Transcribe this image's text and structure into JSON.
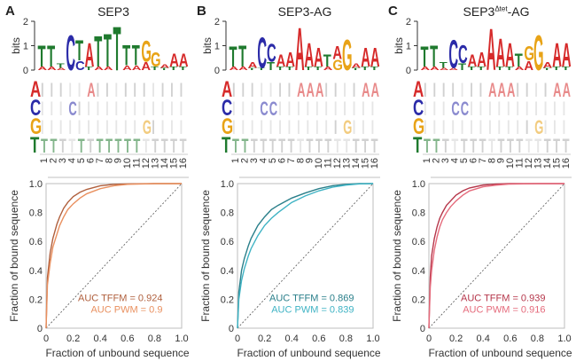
{
  "colors": {
    "A": "#d62a2a",
    "C": "#2b2ba8",
    "G": "#e8a317",
    "T": "#1f7a2e"
  },
  "chart_data": [
    {
      "panel": "A",
      "title": "SEP3",
      "title_sup": "",
      "title_suffix": "",
      "logo": {
        "type": "sequence-logo",
        "ylabel": "bits",
        "yticks": [
          "0",
          "1",
          "2"
        ],
        "ylim": [
          0,
          2
        ],
        "positions": [
          {
            "top": "T",
            "height": 0.9,
            "sub": [
              [
                "A",
                0.15
              ]
            ]
          },
          {
            "top": "T",
            "height": 0.9,
            "sub": [
              [
                "A",
                0.15
              ]
            ]
          },
          {
            "top": "T",
            "height": 0.2,
            "sub": [
              [
                "A",
                0.1
              ]
            ]
          },
          {
            "top": "C",
            "height": 1.5,
            "sub": []
          },
          {
            "top": "T",
            "height": 0.85,
            "sub": [
              [
                "C",
                0.4
              ]
            ]
          },
          {
            "top": "A",
            "height": 1.0,
            "sub": [
              [
                "T",
                0.15
              ]
            ]
          },
          {
            "top": "T",
            "height": 1.3,
            "sub": [
              [
                "A",
                0.15
              ]
            ]
          },
          {
            "top": "T",
            "height": 1.4,
            "sub": [
              [
                "A",
                0.15
              ]
            ]
          },
          {
            "top": "T",
            "height": 1.85,
            "sub": []
          },
          {
            "top": "T",
            "height": 0.85,
            "sub": [
              [
                "A",
                0.2
              ]
            ]
          },
          {
            "top": "T",
            "height": 0.85,
            "sub": [
              [
                "A",
                0.2
              ]
            ]
          },
          {
            "top": "G",
            "height": 0.9,
            "sub": [
              [
                "A",
                0.35
              ]
            ]
          },
          {
            "top": "G",
            "height": 0.6,
            "sub": [
              [
                "T",
                0.15
              ]
            ]
          },
          {
            "top": "A",
            "height": 0.15,
            "sub": [
              [
                "T",
                0.1
              ]
            ]
          },
          {
            "top": "A",
            "height": 0.55,
            "sub": [
              [
                "T",
                0.15
              ]
            ]
          },
          {
            "top": "A",
            "height": 0.55,
            "sub": [
              [
                "T",
                0.15
              ]
            ]
          }
        ]
      },
      "matrix": {
        "row_labels": [
          "A",
          "C",
          "G",
          "T"
        ],
        "col_labels": [
          "1",
          "2",
          "3",
          "4",
          "5",
          "6",
          "7",
          "8",
          "9",
          "10",
          "11",
          "12",
          "13",
          "14",
          "15",
          "16"
        ]
      },
      "roc": {
        "type": "line",
        "xlabel": "Fraction of unbound sequence",
        "ylabel": "Fraction of bound sequence",
        "xticks": [
          "0",
          "0.2",
          "0.4",
          "0.6",
          "0.8",
          "1.0"
        ],
        "yticks": [
          "0",
          "0.2",
          "0.4",
          "0.6",
          "0.8",
          "1.0"
        ],
        "xlim": [
          0,
          1
        ],
        "ylim": [
          0,
          1
        ],
        "diagonal": true,
        "series": [
          {
            "name": "AUC TFFM = 0.924",
            "color": "#b0603e",
            "x": [
              0,
              0.01,
              0.03,
              0.05,
              0.08,
              0.1,
              0.13,
              0.16,
              0.2,
              0.25,
              0.3,
              0.4,
              0.5,
              0.6,
              0.8,
              1.0
            ],
            "y": [
              0,
              0.35,
              0.52,
              0.62,
              0.72,
              0.77,
              0.83,
              0.87,
              0.91,
              0.94,
              0.96,
              0.985,
              0.995,
              0.998,
              1.0,
              1.0
            ]
          },
          {
            "name": "AUC PWM = 0.9",
            "color": "#e9905f",
            "x": [
              0,
              0.01,
              0.03,
              0.05,
              0.08,
              0.1,
              0.13,
              0.16,
              0.2,
              0.25,
              0.3,
              0.4,
              0.5,
              0.6,
              0.8,
              1.0
            ],
            "y": [
              0,
              0.3,
              0.45,
              0.56,
              0.65,
              0.71,
              0.77,
              0.82,
              0.86,
              0.9,
              0.93,
              0.965,
              0.985,
              0.995,
              1.0,
              1.0
            ]
          }
        ]
      }
    },
    {
      "panel": "B",
      "title": "SEP3-AG",
      "title_sup": "",
      "title_suffix": "",
      "logo": {
        "type": "sequence-logo",
        "ylabel": "bits",
        "yticks": [
          "0",
          "1",
          "2"
        ],
        "ylim": [
          0,
          2
        ],
        "positions": [
          {
            "top": "T",
            "height": 0.85,
            "sub": [
              [
                "A",
                0.15
              ]
            ]
          },
          {
            "top": "T",
            "height": 0.9,
            "sub": [
              [
                "A",
                0.15
              ]
            ]
          },
          {
            "top": "A",
            "height": 0.25,
            "sub": [
              [
                "T",
                0.1
              ]
            ]
          },
          {
            "top": "C",
            "height": 1.3,
            "sub": [
              [
                "T",
                0.1
              ]
            ]
          },
          {
            "top": "C",
            "height": 0.75,
            "sub": [
              [
                "T",
                0.35
              ]
            ]
          },
          {
            "top": "A",
            "height": 0.5,
            "sub": [
              [
                "T",
                0.15
              ]
            ]
          },
          {
            "top": "A",
            "height": 0.6,
            "sub": [
              [
                "T",
                0.15
              ]
            ]
          },
          {
            "top": "A",
            "height": 1.8,
            "sub": []
          },
          {
            "top": "A",
            "height": 1.0,
            "sub": [
              [
                "T",
                0.15
              ]
            ]
          },
          {
            "top": "A",
            "height": 0.8,
            "sub": [
              [
                "T",
                0.15
              ]
            ]
          },
          {
            "top": "T",
            "height": 0.5,
            "sub": [
              [
                "A",
                0.15
              ]
            ]
          },
          {
            "top": "A",
            "height": 0.55,
            "sub": [
              [
                "G",
                0.45
              ]
            ]
          },
          {
            "top": "G",
            "height": 1.3,
            "sub": []
          },
          {
            "top": "A",
            "height": 0.2,
            "sub": [
              [
                "T",
                0.1
              ]
            ]
          },
          {
            "top": "A",
            "height": 0.8,
            "sub": [
              [
                "T",
                0.15
              ]
            ]
          },
          {
            "top": "A",
            "height": 0.8,
            "sub": [
              [
                "T",
                0.15
              ]
            ]
          }
        ]
      },
      "matrix": {
        "row_labels": [
          "A",
          "C",
          "G",
          "T"
        ],
        "col_labels": [
          "1",
          "2",
          "3",
          "4",
          "5",
          "6",
          "7",
          "8",
          "9",
          "10",
          "11",
          "12",
          "13",
          "14",
          "15",
          "16"
        ]
      },
      "roc": {
        "type": "line",
        "xlabel": "Fraction of unbound sequence",
        "ylabel": "Fraction of bound sequence",
        "xticks": [
          "0",
          "0.2",
          "0.4",
          "0.6",
          "0.8",
          "1.0"
        ],
        "yticks": [
          "0",
          "0.2",
          "0.4",
          "0.6",
          "0.8",
          "1.0"
        ],
        "xlim": [
          0,
          1
        ],
        "ylim": [
          0,
          1
        ],
        "diagonal": true,
        "series": [
          {
            "name": "AUC TFFM = 0.869",
            "color": "#2a7f8a",
            "x": [
              0,
              0.01,
              0.03,
              0.05,
              0.08,
              0.1,
              0.15,
              0.2,
              0.25,
              0.3,
              0.4,
              0.5,
              0.6,
              0.7,
              0.8,
              0.9,
              1.0
            ],
            "y": [
              0,
              0.25,
              0.4,
              0.48,
              0.57,
              0.62,
              0.71,
              0.77,
              0.82,
              0.85,
              0.9,
              0.935,
              0.965,
              0.985,
              0.995,
              1.0,
              1.0
            ]
          },
          {
            "name": "AUC PWM = 0.839",
            "color": "#3fb3c4",
            "x": [
              0,
              0.01,
              0.03,
              0.05,
              0.08,
              0.1,
              0.15,
              0.2,
              0.25,
              0.3,
              0.4,
              0.5,
              0.6,
              0.7,
              0.8,
              0.9,
              1.0
            ],
            "y": [
              0,
              0.2,
              0.33,
              0.41,
              0.5,
              0.55,
              0.64,
              0.71,
              0.76,
              0.8,
              0.87,
              0.915,
              0.95,
              0.975,
              0.99,
              0.998,
              1.0
            ]
          }
        ]
      }
    },
    {
      "panel": "C",
      "title": "SEP3",
      "title_sup": "Δtet",
      "title_suffix": "-AG",
      "logo": {
        "type": "sequence-logo",
        "ylabel": "bits",
        "yticks": [
          "0",
          "1",
          "2"
        ],
        "ylim": [
          0,
          2
        ],
        "positions": [
          {
            "top": "T",
            "height": 0.85,
            "sub": [
              [
                "A",
                0.15
              ]
            ]
          },
          {
            "top": "T",
            "height": 0.9,
            "sub": [
              [
                "A",
                0.15
              ]
            ]
          },
          {
            "top": "T",
            "height": 0.25,
            "sub": [
              [
                "A",
                0.1
              ]
            ]
          },
          {
            "top": "C",
            "height": 1.2,
            "sub": [
              [
                "A",
                0.1
              ]
            ]
          },
          {
            "top": "C",
            "height": 0.75,
            "sub": [
              [
                "T",
                0.3
              ]
            ]
          },
          {
            "top": "A",
            "height": 0.5,
            "sub": [
              [
                "T",
                0.15
              ]
            ]
          },
          {
            "top": "A",
            "height": 0.6,
            "sub": [
              [
                "T",
                0.15
              ]
            ]
          },
          {
            "top": "A",
            "height": 1.75,
            "sub": []
          },
          {
            "top": "A",
            "height": 1.2,
            "sub": [
              [
                "T",
                0.15
              ]
            ]
          },
          {
            "top": "A",
            "height": 1.0,
            "sub": [
              [
                "T",
                0.15
              ]
            ]
          },
          {
            "top": "T",
            "height": 0.55,
            "sub": [
              [
                "A",
                0.15
              ]
            ]
          },
          {
            "top": "G",
            "height": 0.6,
            "sub": [
              [
                "A",
                0.4
              ]
            ]
          },
          {
            "top": "G",
            "height": 1.5,
            "sub": []
          },
          {
            "top": "A",
            "height": 0.25,
            "sub": [
              [
                "T",
                0.1
              ]
            ]
          },
          {
            "top": "A",
            "height": 1.0,
            "sub": [
              [
                "T",
                0.15
              ]
            ]
          },
          {
            "top": "A",
            "height": 1.0,
            "sub": [
              [
                "T",
                0.15
              ]
            ]
          }
        ]
      },
      "matrix": {
        "row_labels": [
          "A",
          "C",
          "G",
          "T"
        ],
        "col_labels": [
          "1",
          "2",
          "3",
          "4",
          "5",
          "6",
          "7",
          "8",
          "9",
          "10",
          "11",
          "12",
          "13",
          "14",
          "15",
          "16"
        ]
      },
      "roc": {
        "type": "line",
        "xlabel": "Fraction of unbound sequence",
        "ylabel": "Fraction of bound sequence",
        "xticks": [
          "0",
          "0.2",
          "0.4",
          "0.6",
          "0.8",
          "1.0"
        ],
        "yticks": [
          "0",
          "0.2",
          "0.4",
          "0.6",
          "0.8",
          "1.0"
        ],
        "xlim": [
          0,
          1
        ],
        "ylim": [
          0,
          1
        ],
        "diagonal": true,
        "series": [
          {
            "name": "AUC TFFM = 0.939",
            "color": "#b5364a",
            "x": [
              0,
              0.01,
              0.02,
              0.04,
              0.06,
              0.08,
              0.1,
              0.13,
              0.16,
              0.2,
              0.25,
              0.3,
              0.4,
              0.5,
              0.6,
              0.8,
              1.0
            ],
            "y": [
              0,
              0.35,
              0.5,
              0.62,
              0.7,
              0.76,
              0.8,
              0.85,
              0.88,
              0.92,
              0.95,
              0.97,
              0.99,
              0.997,
              1.0,
              1.0,
              1.0
            ]
          },
          {
            "name": "AUC PWM = 0.916",
            "color": "#e56b7c",
            "x": [
              0,
              0.01,
              0.02,
              0.04,
              0.06,
              0.08,
              0.1,
              0.13,
              0.16,
              0.2,
              0.25,
              0.3,
              0.4,
              0.5,
              0.6,
              0.8,
              1.0
            ],
            "y": [
              0,
              0.28,
              0.4,
              0.54,
              0.63,
              0.7,
              0.75,
              0.8,
              0.84,
              0.88,
              0.92,
              0.95,
              0.978,
              0.99,
              0.997,
              1.0,
              1.0
            ]
          }
        ]
      }
    }
  ]
}
